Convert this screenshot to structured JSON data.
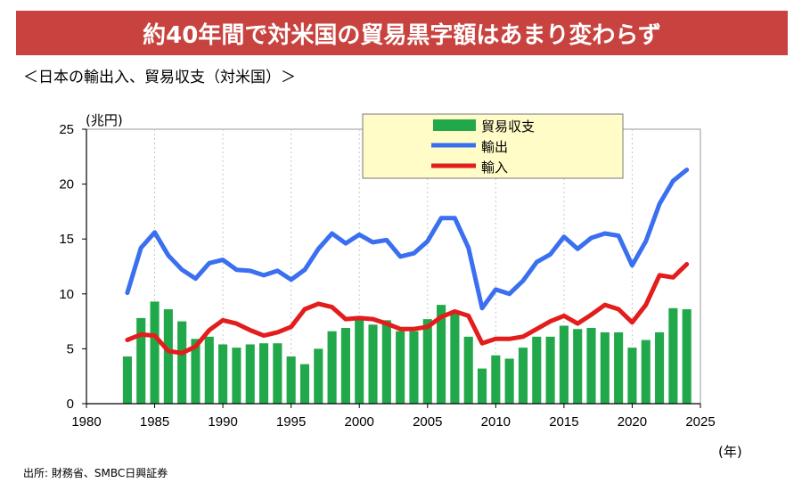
{
  "banner_title": "約40年間で対米国の貿易黒字額はあまり変わらず",
  "subtitle": "＜日本の輸出入、貿易収支（対米国）＞",
  "source": "出所: 財務省、SMBC日興証券",
  "colors": {
    "banner": "#c8433f",
    "balance": "#21a84a",
    "export": "#3a6ff0",
    "import": "#e31c1c",
    "legend_bg": "#fffcc8"
  },
  "chart_data": {
    "type": "bar+line",
    "title": "",
    "ylabel": "(兆円)",
    "xlabel": "(年)",
    "xlim": [
      1980,
      2025
    ],
    "ylim": [
      0,
      25
    ],
    "xticks": [
      "1980",
      "1985",
      "1990",
      "1995",
      "2000",
      "2005",
      "2010",
      "2015",
      "2020",
      "2025"
    ],
    "yticks": [
      "0",
      "5",
      "10",
      "15",
      "20",
      "25"
    ],
    "grid": "vertical dotted",
    "legend": {
      "placement": "top-center",
      "entries": [
        "貿易収支",
        "輸出",
        "輸入"
      ]
    },
    "x": [
      1983,
      1984,
      1985,
      1986,
      1987,
      1988,
      1989,
      1990,
      1991,
      1992,
      1993,
      1994,
      1995,
      1996,
      1997,
      1998,
      1999,
      2000,
      2001,
      2002,
      2003,
      2004,
      2005,
      2006,
      2007,
      2008,
      2009,
      2010,
      2011,
      2012,
      2013,
      2014,
      2015,
      2016,
      2017,
      2018,
      2019,
      2020,
      2021,
      2022,
      2023,
      2024
    ],
    "series": [
      {
        "name": "貿易収支",
        "kind": "bar",
        "values": [
          4.3,
          7.8,
          9.3,
          8.6,
          7.5,
          5.9,
          6.1,
          5.4,
          5.1,
          5.4,
          5.5,
          5.5,
          4.3,
          3.6,
          5.0,
          6.6,
          6.9,
          7.6,
          7.2,
          7.6,
          6.6,
          6.6,
          7.7,
          9.0,
          8.2,
          6.1,
          3.2,
          4.4,
          4.1,
          5.1,
          6.1,
          6.1,
          7.1,
          6.8,
          6.9,
          6.5,
          6.5,
          5.1,
          5.8,
          6.5,
          8.7,
          8.6
        ]
      },
      {
        "name": "輸出",
        "kind": "line",
        "values": [
          10.1,
          14.2,
          15.6,
          13.5,
          12.2,
          11.4,
          12.8,
          13.1,
          12.2,
          12.1,
          11.7,
          12.1,
          11.3,
          12.2,
          14.1,
          15.5,
          14.6,
          15.4,
          14.7,
          14.9,
          13.4,
          13.7,
          14.8,
          16.9,
          16.9,
          14.2,
          8.7,
          10.4,
          10.0,
          11.2,
          12.9,
          13.6,
          15.2,
          14.1,
          15.1,
          15.5,
          15.3,
          12.6,
          14.8,
          18.2,
          20.3,
          21.3
        ]
      },
      {
        "name": "輸入",
        "kind": "line",
        "values": [
          5.8,
          6.3,
          6.2,
          4.8,
          4.6,
          5.2,
          6.7,
          7.6,
          7.3,
          6.7,
          6.2,
          6.5,
          7.0,
          8.6,
          9.1,
          8.8,
          7.7,
          7.8,
          7.7,
          7.3,
          6.8,
          6.8,
          7.0,
          7.9,
          8.4,
          8.0,
          5.5,
          5.9,
          5.9,
          6.1,
          6.8,
          7.5,
          8.0,
          7.3,
          8.1,
          9.0,
          8.6,
          7.4,
          9.0,
          11.7,
          11.5,
          12.7
        ]
      }
    ]
  }
}
